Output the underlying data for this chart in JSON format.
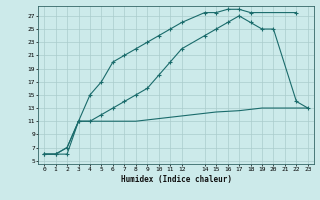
{
  "xlabel": "Humidex (Indice chaleur)",
  "bg_color": "#cceaea",
  "grid_color": "#b0d8d8",
  "line_color": "#1a6b6b",
  "xlim": [
    -0.5,
    23.5
  ],
  "ylim": [
    4.5,
    28.5
  ],
  "xticks": [
    0,
    1,
    2,
    3,
    4,
    5,
    6,
    7,
    8,
    9,
    10,
    11,
    12,
    14,
    15,
    16,
    17,
    18,
    19,
    20,
    21,
    22,
    23
  ],
  "yticks": [
    5,
    7,
    9,
    11,
    13,
    15,
    17,
    19,
    21,
    23,
    25,
    27
  ],
  "curve1_x": [
    0,
    1,
    2,
    3,
    4,
    5,
    6,
    7,
    8,
    9,
    10,
    11,
    12,
    14,
    15,
    16,
    17,
    18,
    22
  ],
  "curve1_y": [
    6,
    6,
    6,
    11,
    15,
    17,
    20,
    21,
    22,
    23,
    24,
    25,
    26,
    27.5,
    27.5,
    28,
    28,
    27.5,
    27.5
  ],
  "curve2_x": [
    0,
    1,
    2,
    3,
    4,
    5,
    6,
    7,
    8,
    9,
    10,
    11,
    12,
    14,
    15,
    16,
    17,
    18,
    19,
    20,
    21,
    22,
    23
  ],
  "curve2_y": [
    6,
    6,
    7,
    11,
    11,
    11,
    11,
    11,
    11,
    11.2,
    11.4,
    11.6,
    11.8,
    12.2,
    12.4,
    12.5,
    12.6,
    12.8,
    13,
    13,
    13,
    13,
    13
  ],
  "curve3_x": [
    0,
    1,
    2,
    3,
    4,
    5,
    6,
    7,
    8,
    9,
    10,
    11,
    12,
    14,
    15,
    16,
    17,
    18,
    19,
    20,
    22,
    23
  ],
  "curve3_y": [
    6,
    6,
    7,
    11,
    11,
    12,
    13,
    14,
    15,
    16,
    18,
    20,
    22,
    24,
    25,
    26,
    27,
    26,
    25,
    25,
    14,
    13
  ]
}
